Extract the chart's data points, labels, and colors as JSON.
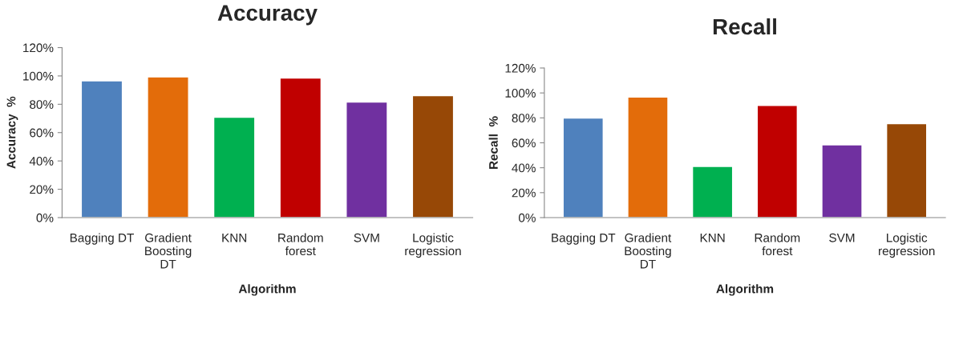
{
  "chart_data": [
    {
      "type": "bar",
      "title": "Accuracy",
      "xlabel": "Algorithm",
      "ylabel": "Accuracy  %",
      "categories": [
        "Bagging DT",
        "Gradient\nBoosting\nDT",
        "KNN",
        "Random\nforest",
        "SVM",
        "Logistic\nregression"
      ],
      "values": [
        96.5,
        99.3,
        70.9,
        98.5,
        81.5,
        86.1
      ],
      "colors": [
        "#4f81bd",
        "#e36c0a",
        "#00b050",
        "#c00000",
        "#7030a0",
        "#974806"
      ],
      "ylim": [
        0,
        120
      ],
      "yticks": [
        {
          "value": 0,
          "label": "0%"
        },
        {
          "value": 20,
          "label": "20%"
        },
        {
          "value": 40,
          "label": "40%"
        },
        {
          "value": 60,
          "label": "60%"
        },
        {
          "value": 80,
          "label": "80%"
        },
        {
          "value": 100,
          "label": "100%"
        },
        {
          "value": 120,
          "label": "120%"
        }
      ],
      "grid": false,
      "legend": false
    },
    {
      "type": "bar",
      "title": "Recall",
      "xlabel": "Algorithm",
      "ylabel": "Recall  %",
      "categories": [
        "Bagging DT",
        "Gradient\nBoosting\nDT",
        "KNN",
        "Random\nforest",
        "SVM",
        "Logistic\nregression"
      ],
      "values": [
        79.8,
        96.7,
        41.1,
        89.9,
        58.4,
        75.3
      ],
      "colors": [
        "#4f81bd",
        "#e36c0a",
        "#00b050",
        "#c00000",
        "#7030a0",
        "#974806"
      ],
      "ylim": [
        0,
        120
      ],
      "yticks": [
        {
          "value": 0,
          "label": "0%"
        },
        {
          "value": 20,
          "label": "20%"
        },
        {
          "value": 40,
          "label": "40%"
        },
        {
          "value": 60,
          "label": "60%"
        },
        {
          "value": 80,
          "label": "80%"
        },
        {
          "value": 100,
          "label": "100%"
        },
        {
          "value": 120,
          "label": "120%"
        }
      ],
      "grid": false,
      "legend": false
    }
  ]
}
